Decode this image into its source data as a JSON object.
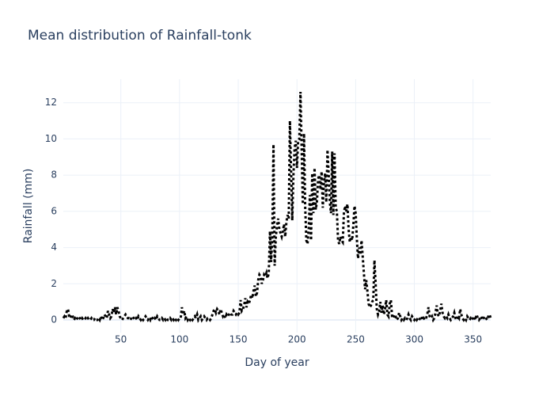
{
  "chart_data": {
    "type": "line",
    "title": "Mean distribution of Rainfall-tonk",
    "x_label": "Day of year",
    "y_label": "Rainfall (mm)",
    "xlim": [
      1,
      365
    ],
    "ylim": [
      -0.7,
      13.3
    ],
    "xticks": [
      50,
      100,
      150,
      200,
      250,
      300,
      350
    ],
    "yticks": [
      0,
      2,
      4,
      6,
      8,
      10,
      12
    ],
    "grid": true,
    "x": [
      1,
      2,
      3,
      4,
      5,
      6,
      7,
      8,
      9,
      10,
      11,
      12,
      13,
      14,
      15,
      16,
      17,
      18,
      19,
      20,
      21,
      22,
      23,
      24,
      25,
      26,
      27,
      28,
      29,
      30,
      31,
      32,
      33,
      34,
      35,
      36,
      37,
      38,
      39,
      40,
      41,
      42,
      43,
      44,
      45,
      46,
      47,
      48,
      49,
      50,
      51,
      52,
      53,
      54,
      55,
      56,
      57,
      58,
      59,
      60,
      61,
      62,
      63,
      64,
      65,
      66,
      67,
      68,
      69,
      70,
      71,
      72,
      73,
      74,
      75,
      76,
      77,
      78,
      79,
      80,
      81,
      82,
      83,
      84,
      85,
      86,
      87,
      88,
      89,
      90,
      91,
      92,
      93,
      94,
      95,
      96,
      97,
      98,
      99,
      100,
      101,
      102,
      103,
      104,
      105,
      106,
      107,
      108,
      109,
      110,
      111,
      112,
      113,
      114,
      115,
      116,
      117,
      118,
      119,
      120,
      121,
      122,
      123,
      124,
      125,
      126,
      127,
      128,
      129,
      130,
      131,
      132,
      133,
      134,
      135,
      136,
      137,
      138,
      139,
      140,
      141,
      142,
      143,
      144,
      145,
      146,
      147,
      148,
      149,
      150,
      151,
      152,
      153,
      154,
      155,
      156,
      157,
      158,
      159,
      160,
      161,
      162,
      163,
      164,
      165,
      166,
      167,
      168,
      169,
      170,
      171,
      172,
      173,
      174,
      175,
      176,
      177,
      178,
      179,
      180,
      181,
      182,
      183,
      184,
      185,
      186,
      187,
      188,
      189,
      190,
      191,
      192,
      193,
      194,
      195,
      196,
      197,
      198,
      199,
      200,
      201,
      202,
      203,
      204,
      205,
      206,
      207,
      208,
      209,
      210,
      211,
      212,
      213,
      214,
      215,
      216,
      217,
      218,
      219,
      220,
      221,
      222,
      223,
      224,
      225,
      226,
      227,
      228,
      229,
      230,
      231,
      232,
      233,
      234,
      235,
      236,
      237,
      238,
      239,
      240,
      241,
      242,
      243,
      244,
      245,
      246,
      247,
      248,
      249,
      250,
      251,
      252,
      253,
      254,
      255,
      256,
      257,
      258,
      259,
      260,
      261,
      262,
      263,
      264,
      265,
      266,
      267,
      268,
      269,
      270,
      271,
      272,
      273,
      274,
      275,
      276,
      277,
      278,
      279,
      280,
      281,
      282,
      283,
      284,
      285,
      286,
      287,
      288,
      289,
      290,
      291,
      292,
      293,
      294,
      295,
      296,
      297,
      298,
      299,
      300,
      301,
      302,
      303,
      304,
      305,
      306,
      307,
      308,
      309,
      310,
      311,
      312,
      313,
      314,
      315,
      316,
      317,
      318,
      319,
      320,
      321,
      322,
      323,
      324,
      325,
      326,
      327,
      328,
      329,
      330,
      331,
      332,
      333,
      334,
      335,
      336,
      337,
      338,
      339,
      340,
      341,
      342,
      343,
      344,
      345,
      346,
      347,
      348,
      349,
      350,
      351,
      352,
      353,
      354,
      355,
      356,
      357,
      358,
      359,
      360,
      361,
      362,
      363,
      364,
      365
    ],
    "series": [
      {
        "color": "#000000",
        "dash": "dot",
        "values": [
          0.1,
          0.2,
          0.1,
          0.5,
          0.6,
          0.2,
          0.1,
          0.3,
          0.2,
          0.0,
          0.1,
          0.0,
          0.1,
          0.2,
          0.1,
          0.0,
          0.1,
          0.0,
          0.0,
          0.1,
          0.0,
          0.1,
          0.0,
          0.0,
          0.1,
          0.0,
          0.0,
          0.1,
          0.0,
          0.0,
          0.1,
          0.0,
          0.2,
          0.0,
          0.1,
          0.3,
          0.2,
          0.1,
          0.5,
          0.3,
          0.1,
          0.2,
          0.6,
          0.4,
          0.7,
          0.3,
          0.7,
          0.5,
          0.2,
          0.1,
          0.0,
          0.1,
          0.2,
          0.3,
          0.2,
          0.1,
          0.1,
          0.0,
          0.1,
          0.2,
          0.1,
          0.0,
          0.1,
          0.0,
          0.2,
          0.1,
          0.0,
          0.1,
          0.0,
          0.1,
          0.2,
          0.1,
          0.0,
          0.1,
          0.0,
          0.2,
          0.1,
          0.0,
          0.1,
          0.0,
          0.2,
          0.1,
          0.0,
          0.0,
          0.1,
          0.0,
          0.1,
          0.0,
          0.1,
          0.0,
          0.0,
          0.1,
          0.0,
          0.1,
          0.0,
          0.1,
          0.0,
          0.1,
          0.0,
          0.1,
          0.1,
          0.7,
          0.3,
          0.5,
          0.1,
          0.2,
          0.0,
          0.1,
          0.0,
          0.1,
          0.0,
          0.1,
          0.2,
          0.1,
          0.3,
          0.0,
          0.1,
          0.2,
          0.0,
          0.1,
          0.2,
          0.1,
          0.0,
          0.1,
          0.1,
          0.0,
          0.1,
          0.3,
          0.5,
          0.6,
          0.4,
          0.6,
          0.5,
          0.3,
          0.6,
          0.4,
          0.2,
          0.3,
          0.1,
          0.3,
          0.2,
          0.3,
          0.4,
          0.3,
          0.3,
          0.5,
          0.4,
          0.3,
          0.4,
          0.3,
          0.4,
          1.1,
          0.5,
          0.6,
          0.8,
          1.2,
          0.7,
          1.0,
          0.9,
          1.1,
          1.4,
          1.2,
          1.6,
          1.9,
          1.3,
          1.5,
          2.2,
          2.5,
          2.4,
          2.0,
          2.2,
          2.5,
          2.4,
          2.6,
          2.3,
          2.6,
          4.9,
          3.2,
          4.5,
          9.7,
          3.0,
          4.6,
          5.2,
          5.6,
          5.0,
          4.8,
          4.6,
          4.9,
          5.3,
          4.6,
          5.4,
          5.8,
          5.6,
          11.0,
          8.2,
          5.5,
          8.0,
          9.5,
          9.9,
          8.4,
          9.9,
          10.0,
          12.6,
          9.4,
          6.4,
          10.3,
          6.3,
          4.4,
          4.2,
          5.0,
          6.9,
          4.4,
          8.1,
          5.9,
          8.4,
          6.1,
          6.5,
          7.8,
          8.0,
          7.2,
          8.2,
          6.2,
          7.6,
          8.1,
          6.5,
          9.4,
          8.1,
          6.5,
          5.9,
          9.3,
          5.8,
          9.2,
          6.2,
          6.0,
          4.4,
          4.2,
          4.6,
          4.4,
          4.3,
          5.9,
          6.3,
          6.0,
          6.4,
          5.0,
          4.3,
          4.6,
          4.4,
          5.2,
          6.3,
          5.9,
          4.5,
          3.4,
          4.0,
          3.6,
          4.4,
          3.5,
          2.6,
          1.7,
          2.2,
          1.6,
          0.9,
          0.7,
          0.8,
          1.0,
          1.1,
          3.3,
          2.0,
          0.6,
          0.3,
          0.5,
          1.0,
          0.4,
          0.8,
          0.3,
          0.6,
          1.1,
          0.3,
          0.2,
          0.9,
          1.1,
          0.2,
          0.1,
          0.3,
          0.2,
          0.0,
          0.1,
          0.4,
          0.2,
          0.0,
          0.1,
          0.0,
          0.1,
          0.0,
          0.1,
          0.3,
          0.1,
          0.0,
          0.2,
          0.1,
          0.0,
          0.1,
          0.0,
          0.1,
          0.0,
          0.1,
          0.2,
          0.0,
          0.1,
          0.0,
          0.1,
          0.3,
          0.7,
          0.2,
          0.1,
          0.2,
          0.0,
          0.1,
          0.4,
          0.8,
          0.3,
          0.2,
          0.5,
          0.9,
          0.4,
          0.2,
          0.1,
          0.2,
          0.1,
          0.3,
          0.1,
          0.0,
          0.1,
          0.2,
          0.4,
          0.1,
          0.0,
          0.2,
          0.1,
          0.6,
          0.3,
          0.1,
          0.0,
          0.1,
          0.0,
          0.2,
          0.1,
          0.0,
          0.1,
          0.0,
          0.1,
          0.2,
          0.0,
          0.3,
          0.1,
          0.0,
          0.1,
          0.2,
          0.0,
          0.1,
          0.2,
          0.1,
          0.0,
          0.2,
          0.3,
          0.1
        ]
      }
    ]
  }
}
